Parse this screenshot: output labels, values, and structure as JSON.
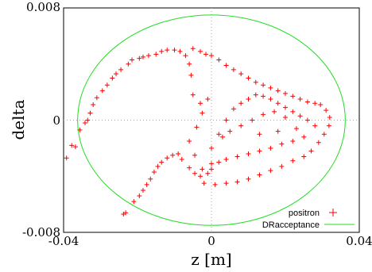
{
  "chart_data": {
    "type": "scatter",
    "xlabel": "z [m]",
    "ylabel": "delta",
    "xlim": [
      -0.04,
      0.04
    ],
    "ylim": [
      -0.008,
      0.008
    ],
    "x_ticks": [
      "-0.04",
      "0",
      "0.04"
    ],
    "y_ticks": [
      "-0.008",
      "0",
      "0.008"
    ],
    "grid": "zero-axes only",
    "legend_position": "bottom-right",
    "series": [
      {
        "name": "positron",
        "marker": "+",
        "color": "#ff0000",
        "note": "beam particle distribution (crescent shaped cloud)",
        "points": [
          [
            -0.0238,
            -0.0067
          ],
          [
            -0.0232,
            -0.0066
          ],
          [
            -0.021,
            -0.0058
          ],
          [
            -0.0195,
            -0.0054
          ],
          [
            -0.0185,
            -0.005
          ],
          [
            -0.0175,
            -0.0046
          ],
          [
            -0.0165,
            -0.0042
          ],
          [
            -0.0155,
            -0.0037
          ],
          [
            -0.0145,
            -0.0033
          ],
          [
            -0.0135,
            -0.003
          ],
          [
            -0.012,
            -0.0027
          ],
          [
            -0.0105,
            -0.0025
          ],
          [
            -0.009,
            -0.0024
          ],
          [
            -0.008,
            -0.0028
          ],
          [
            -0.006,
            -0.0034
          ],
          [
            -0.0045,
            -0.0038
          ],
          [
            -0.003,
            -0.004
          ],
          [
            -0.001,
            -0.0038
          ],
          [
            0.0,
            -0.0035
          ],
          [
            -0.0025,
            -0.0035
          ],
          [
            -0.0045,
            -0.0025
          ],
          [
            -0.006,
            -0.0015
          ],
          [
            -0.004,
            -0.0005
          ],
          [
            -0.0025,
            0.0005
          ],
          [
            -0.001,
            0.0015
          ],
          [
            -0.003,
            0.0012
          ],
          [
            -0.005,
            0.0018
          ],
          [
            -0.0055,
            0.0032
          ],
          [
            -0.006,
            0.004
          ],
          [
            -0.007,
            0.0046
          ],
          [
            -0.0085,
            0.0049
          ],
          [
            -0.01,
            0.005
          ],
          [
            -0.012,
            0.005
          ],
          [
            -0.0135,
            0.0049
          ],
          [
            -0.015,
            0.0047
          ],
          [
            -0.017,
            0.0046
          ],
          [
            -0.0185,
            0.0045
          ],
          [
            -0.0195,
            0.0044
          ],
          [
            -0.0215,
            0.0043
          ],
          [
            -0.0225,
            0.004
          ],
          [
            -0.0245,
            0.0036
          ],
          [
            -0.0258,
            0.0033
          ],
          [
            -0.0268,
            0.003
          ],
          [
            -0.0282,
            0.0025
          ],
          [
            -0.0295,
            0.0021
          ],
          [
            -0.031,
            0.0016
          ],
          [
            -0.032,
            0.0011
          ],
          [
            -0.0328,
            0.0005
          ],
          [
            -0.0335,
            0.0
          ],
          [
            -0.0342,
            -0.0002
          ],
          [
            -0.0356,
            -0.0007
          ],
          [
            -0.0368,
            -0.0019
          ],
          [
            -0.0378,
            -0.0018
          ],
          [
            -0.0392,
            -0.0027
          ],
          [
            -0.005,
            0.0051
          ],
          [
            -0.003,
            0.0049
          ],
          [
            -0.0015,
            0.0047
          ],
          [
            0.0,
            0.0046
          ],
          [
            0.002,
            0.0043
          ],
          [
            0.004,
            0.0039
          ],
          [
            0.006,
            0.0036
          ],
          [
            0.008,
            0.0033
          ],
          [
            0.01,
            0.003
          ],
          [
            0.012,
            0.0027
          ],
          [
            0.014,
            0.0025
          ],
          [
            0.016,
            0.0023
          ],
          [
            0.018,
            0.0021
          ],
          [
            0.02,
            0.0019
          ],
          [
            0.022,
            0.0017
          ],
          [
            0.024,
            0.0015
          ],
          [
            0.026,
            0.0013
          ],
          [
            0.028,
            0.0012
          ],
          [
            0.0295,
            0.0011
          ],
          [
            0.031,
            0.0007
          ],
          [
            0.032,
            0.0002
          ],
          [
            0.0318,
            -0.0004
          ],
          [
            0.0305,
            -0.001
          ],
          [
            0.029,
            -0.0016
          ],
          [
            0.027,
            -0.0022
          ],
          [
            0.025,
            -0.0026
          ],
          [
            0.022,
            -0.0029
          ],
          [
            0.019,
            -0.0033
          ],
          [
            0.016,
            -0.0036
          ],
          [
            0.013,
            -0.0039
          ],
          [
            0.01,
            -0.0042
          ],
          [
            0.007,
            -0.0044
          ],
          [
            0.004,
            -0.0045
          ],
          [
            0.001,
            -0.0046
          ],
          [
            -0.002,
            -0.0045
          ],
          [
            0.0,
            -0.002
          ],
          [
            0.002,
            -0.001
          ],
          [
            0.004,
            0.0
          ],
          [
            0.006,
            0.0008
          ],
          [
            0.008,
            0.0012
          ],
          [
            0.01,
            0.0015
          ],
          [
            0.012,
            0.0018
          ],
          [
            0.014,
            0.0017
          ],
          [
            0.016,
            0.0015
          ],
          [
            0.018,
            0.0012
          ],
          [
            0.02,
            0.0009
          ],
          [
            0.022,
            0.0006
          ],
          [
            0.024,
            0.0003
          ],
          [
            0.026,
            0.0
          ],
          [
            0.028,
            -0.0004
          ],
          [
            0.025,
            -0.0012
          ],
          [
            0.022,
            -0.0015
          ],
          [
            0.019,
            -0.0017
          ],
          [
            0.016,
            -0.002
          ],
          [
            0.013,
            -0.0022
          ],
          [
            0.01,
            -0.0024
          ],
          [
            0.007,
            -0.0026
          ],
          [
            0.004,
            -0.0028
          ],
          [
            0.002,
            -0.003
          ],
          [
            0.0,
            -0.0031
          ],
          [
            0.003,
            -0.0012
          ],
          [
            0.005,
            -0.0008
          ],
          [
            0.008,
            -0.0004
          ],
          [
            0.011,
            0.0
          ],
          [
            0.014,
            0.0004
          ],
          [
            0.017,
            0.0006
          ],
          [
            0.02,
            0.0002
          ],
          [
            0.023,
            -0.0006
          ],
          [
            0.018,
            -0.0008
          ],
          [
            0.013,
            -0.001
          ]
        ]
      },
      {
        "name": "DRacceptance",
        "marker": "line",
        "color": "#22dd22",
        "note": "elliptical acceptance boundary",
        "ellipse": {
          "center": [
            0.0,
            0.0
          ],
          "semi_x": 0.0362,
          "semi_y": 0.0075
        }
      }
    ]
  }
}
